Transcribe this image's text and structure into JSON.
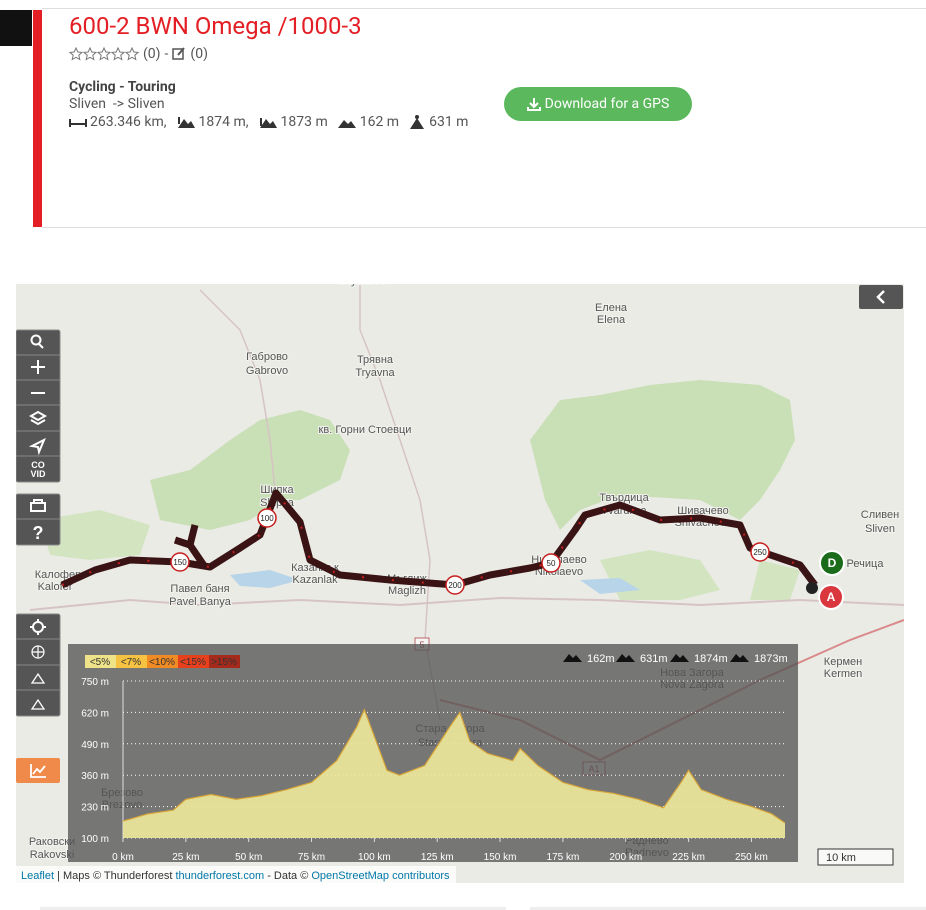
{
  "header": {
    "title": "600-2 BWN Omega /1000-3",
    "rating_count": "(0)",
    "separator": "-",
    "comment_count": "(0)",
    "activity": "Cycling - Touring",
    "start": "Sliven",
    "end": "-> Sliven",
    "distance": "263.346 km,",
    "ascent": "1874 m,",
    "descent": "1873 m",
    "min_altitude": "162 m",
    "max_altitude": "631 m",
    "download_button": "Download for a GPS"
  },
  "map": {
    "places": [
      "Dryanovo",
      "Габрово",
      "Gabrovo",
      "Трявна",
      "Tryavna",
      "Елена",
      "Elena",
      "кв. Горни Стоевци",
      "Шипка",
      "Shipka",
      "Твърдица",
      "Tvarditsa",
      "Шивачево",
      "Shivachevo",
      "Сливен",
      "Sliven",
      "Речица",
      "Калофер",
      "Kalofer",
      "Павел баня",
      "Pavel Banya",
      "Казанлък",
      "Kazanlak",
      "Мъглиж",
      "Maglizh",
      "Николаево",
      "Nikolaevo",
      "Кермен",
      "Kermen",
      "Нова Загора",
      "Nova Zagora",
      "Стара Загора",
      "Stara Zagora",
      "Брезово",
      "Brezovo",
      "Раковски",
      "Rakovski",
      "Раднево",
      "Radnevo"
    ],
    "road_shields": [
      "5",
      "A1"
    ],
    "km_markers": [
      "50",
      "100",
      "150",
      "200",
      "250"
    ],
    "start_marker": "D",
    "end_marker": "A",
    "covid_button": [
      "CO",
      "VID"
    ],
    "help_button": "?",
    "scale": "10 km",
    "attribution": {
      "leaflet": "Leaflet",
      "maps": "| Maps © Thunderforest",
      "thunderforest": "thunderforest.com",
      "data": "- Data ©",
      "osm": "OpenStreetMap contributors"
    }
  },
  "elevation_profile": {
    "grade_legend": [
      "<5%",
      "<7%",
      "<10%",
      "<15%",
      ">15%"
    ],
    "stats": {
      "min": "162m",
      "max": "631m",
      "ascent": "1874m",
      "descent": "1873m"
    },
    "xlim": [
      0,
      263.346
    ],
    "ylim": [
      100,
      750
    ],
    "yticks": [
      {
        "value": 100,
        "label": "100 m"
      },
      {
        "value": 230,
        "label": "230 m"
      },
      {
        "value": 360,
        "label": "360 m"
      },
      {
        "value": 490,
        "label": "490 m"
      },
      {
        "value": 620,
        "label": "620 m"
      },
      {
        "value": 750,
        "label": "750 m"
      }
    ],
    "xticks": [
      {
        "value": 0,
        "label": "0 km"
      },
      {
        "value": 25,
        "label": "25 km"
      },
      {
        "value": 50,
        "label": "50 km"
      },
      {
        "value": 75,
        "label": "75 km"
      },
      {
        "value": 100,
        "label": "100 km"
      },
      {
        "value": 125,
        "label": "125 km"
      },
      {
        "value": 150,
        "label": "150 km"
      },
      {
        "value": 175,
        "label": "175 km"
      },
      {
        "value": 200,
        "label": "200 km"
      },
      {
        "value": 225,
        "label": "225 km"
      },
      {
        "value": 250,
        "label": "250 km"
      }
    ],
    "x": [
      0,
      10,
      20,
      25,
      35,
      45,
      55,
      65,
      75,
      85,
      93,
      96,
      100,
      105,
      110,
      120,
      130,
      134,
      138,
      145,
      155,
      158,
      165,
      175,
      185,
      195,
      205,
      215,
      222,
      225,
      230,
      240,
      250,
      258,
      263.346
    ],
    "values": [
      170,
      200,
      215,
      260,
      280,
      260,
      275,
      300,
      330,
      420,
      560,
      631,
      520,
      380,
      360,
      400,
      560,
      620,
      500,
      450,
      420,
      470,
      400,
      330,
      300,
      285,
      260,
      225,
      330,
      380,
      300,
      260,
      230,
      200,
      162
    ]
  }
}
